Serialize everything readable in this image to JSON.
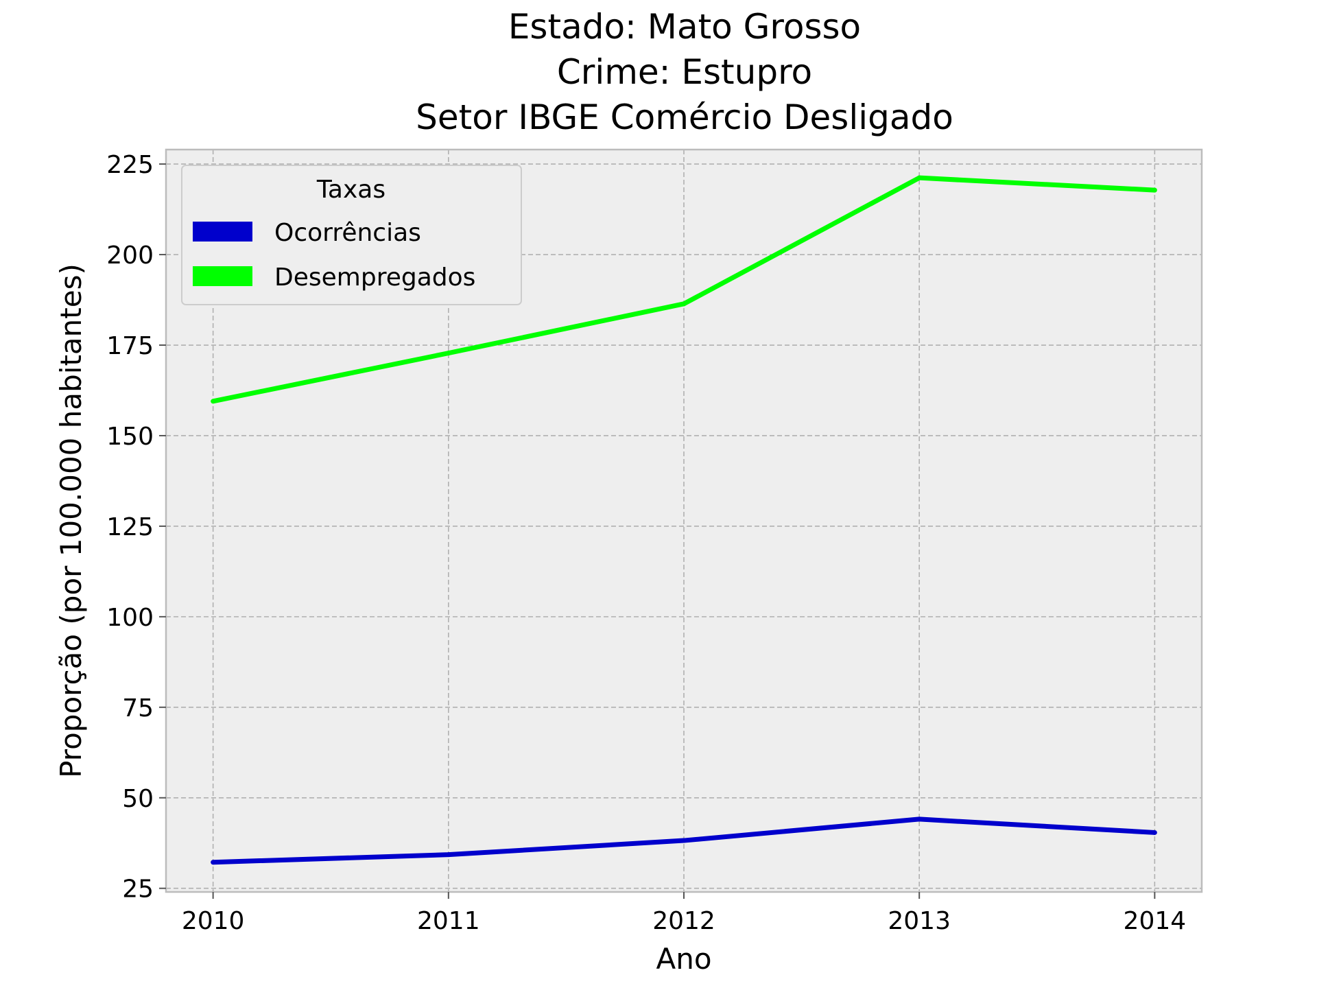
{
  "chart_data": {
    "type": "line",
    "title_lines": [
      "Estado: Mato Grosso",
      "Crime: Estupro",
      "Setor IBGE  Comércio   Desligado"
    ],
    "xlabel": "Ano",
    "ylabel": "Proporção (por 100.000 habitantes)",
    "x": [
      2010,
      2011,
      2012,
      2013,
      2014
    ],
    "x_tick_labels": [
      "2010",
      "2011",
      "2012",
      "2013",
      "2014"
    ],
    "y_ticks": [
      25,
      50,
      75,
      100,
      125,
      150,
      175,
      200,
      225
    ],
    "y_tick_labels": [
      "25",
      "50",
      "75",
      "100",
      "125",
      "150",
      "175",
      "200",
      "225"
    ],
    "xlim": [
      2009.8,
      2014.2
    ],
    "ylim": [
      24,
      229
    ],
    "grid": true,
    "legend": {
      "title": "Taxas",
      "placement": "upper-left",
      "entries": [
        "Ocorrências",
        "Desempregados"
      ]
    },
    "series": [
      {
        "name": "Ocorrências",
        "color": "#0000cc",
        "values": [
          32.2,
          34.3,
          38.2,
          44.1,
          40.4
        ]
      },
      {
        "name": "Desempregados",
        "color": "#00ff00",
        "values": [
          159.5,
          172.8,
          186.4,
          221.2,
          217.8
        ]
      }
    ]
  },
  "colors": {
    "plot_background": "#eeeeee",
    "frame": "#bcbcbc"
  }
}
